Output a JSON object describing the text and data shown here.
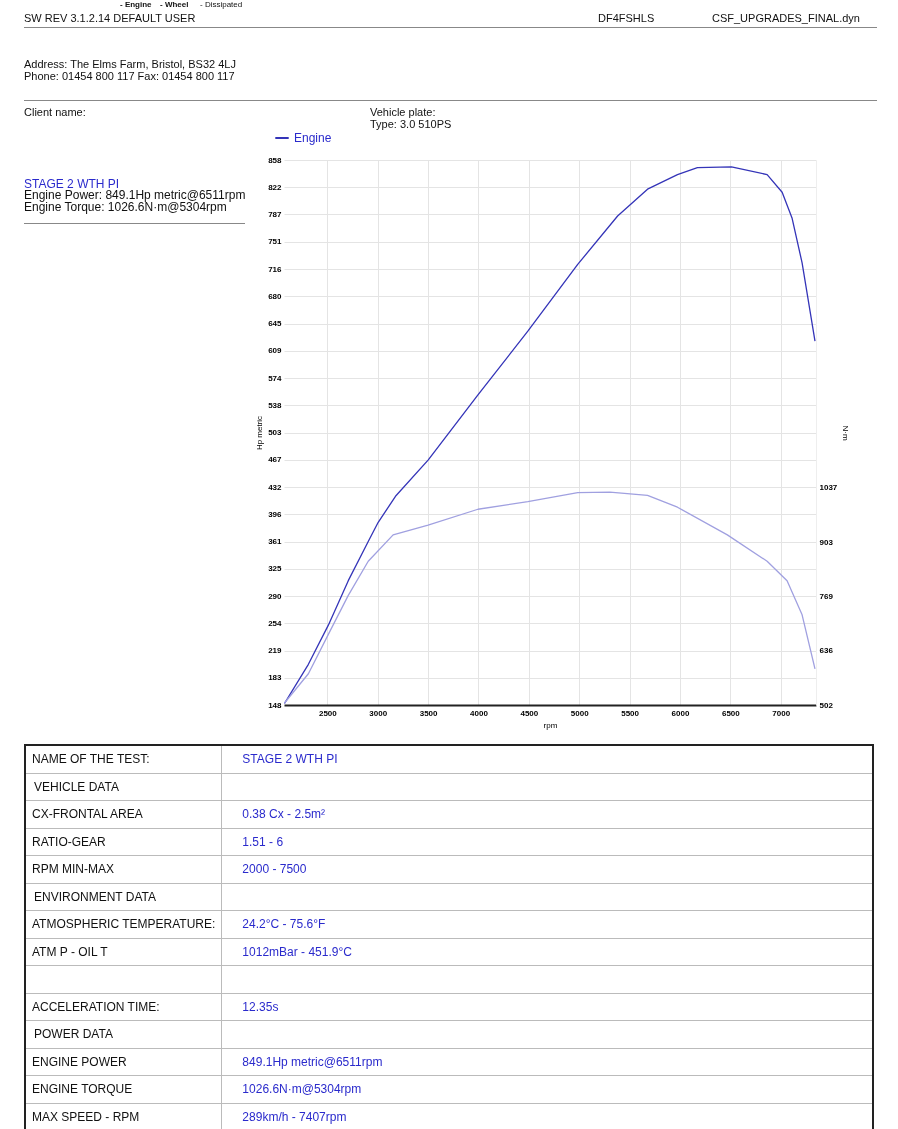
{
  "chart_data": {
    "type": "line",
    "title": "STAGE 2 WTH PI",
    "xlabel": "rpm",
    "ylabel": "Hp metric",
    "y2label": "N·m",
    "annotations": [
      "- Engine",
      "- Wheel",
      "- Dissipated",
      "SW REV 3.1.2.14  DEFAULT USER",
      "DF4FSHLS",
      "CSF_UPGRADES_FINAL.dyn",
      "Address: The Elms Farm, Bristol, BS32 4LJ",
      "Phone: 01454 800 117 Fax: 01454 800 117",
      "Client name:",
      "Vehicle plate:",
      "Type: 3.0 510PS",
      "Engine Power: 849.1Hp metric@6511rpm",
      "Engine Torque: 1026.6N·m@5304rpm",
      "NAME OF THE TEST:",
      "STAGE 2 WTH PI",
      "VEHICLE DATA",
      "CX-FRONTAL AREA",
      "0.38 Cx - 2.5m²",
      "RATIO-GEAR",
      "1.51 - 6",
      "RPM MIN-MAX",
      "2000 - 7500",
      "ENVIRONMENT DATA",
      "ATMOSPHERIC TEMPERATURE:",
      "24.2°C - 75.6°F",
      "ATM P - OIL T",
      "1012mBar - 451.9°C",
      "ACCELERATION TIME:",
      "12.35s",
      "POWER DATA",
      "ENGINE POWER",
      "849.1Hp metric@6511rpm",
      "ENGINE TORQUE",
      "1026.6N·m@5304rpm",
      "MAX SPEED - RPM",
      "289km/h - 7407rpm"
    ],
    "series": [
      {
        "name": "Engine",
        "color": "#3434b8",
        "x": [
          2075,
          2312,
          2510,
          2708,
          2906,
          3005,
          3183,
          3500,
          3995,
          4490,
          4985,
          5381,
          5678,
          5975,
          6173,
          6511,
          6865,
          7014,
          7113,
          7212,
          7340
        ],
        "values": [
          150,
          201,
          252,
          310,
          361,
          386,
          421,
          467,
          552,
          635,
          722,
          785,
          820,
          839,
          848,
          849,
          839,
          816,
          782,
          724,
          622
        ]
      },
      {
        "color": "#a0a0e0",
        "axis": "y2",
        "x": [
          2075,
          2312,
          2510,
          2708,
          2906,
          3153,
          3500,
          3995,
          4490,
          4985,
          5304,
          5678,
          5975,
          6470,
          6865,
          7063,
          7212,
          7340
        ],
        "values": [
          507,
          579,
          676,
          772,
          856,
          921,
          945,
          984,
          1003,
          1025,
          1026,
          1018,
          989,
          921,
          856,
          808,
          724,
          591
        ]
      }
    ],
    "xlim": [
      2070,
      7350
    ],
    "xticks": [
      2500,
      3000,
      3500,
      4000,
      4500,
      5000,
      5500,
      6000,
      6500,
      7000
    ],
    "ylim": [
      148,
      858
    ],
    "yticks": [
      148,
      {
        "value": 183.5,
        "label": "183"
      },
      219,
      {
        "value": 254.5,
        "label": "254"
      },
      290,
      {
        "value": 325.5,
        "label": "325"
      },
      361,
      {
        "value": 396.5,
        "label": "396"
      },
      432,
      {
        "value": 467.5,
        "label": "467"
      },
      503,
      {
        "value": 538.5,
        "label": "538"
      },
      574,
      {
        "value": 609.5,
        "label": "609"
      },
      645,
      {
        "value": 680.5,
        "label": "680"
      },
      716,
      {
        "value": 751.5,
        "label": "751"
      },
      787,
      {
        "value": 822.5,
        "label": "822"
      },
      858
    ],
    "y2lim": [
      502,
      1844
    ],
    "y2ticks": [
      502,
      {
        "value": 635.75,
        "label": "636"
      },
      {
        "value": 769.5,
        "label": "769"
      },
      {
        "value": 903.25,
        "label": "903"
      },
      1037
    ],
    "grid": true,
    "legend": "top left",
    "line_style": "solid"
  }
}
